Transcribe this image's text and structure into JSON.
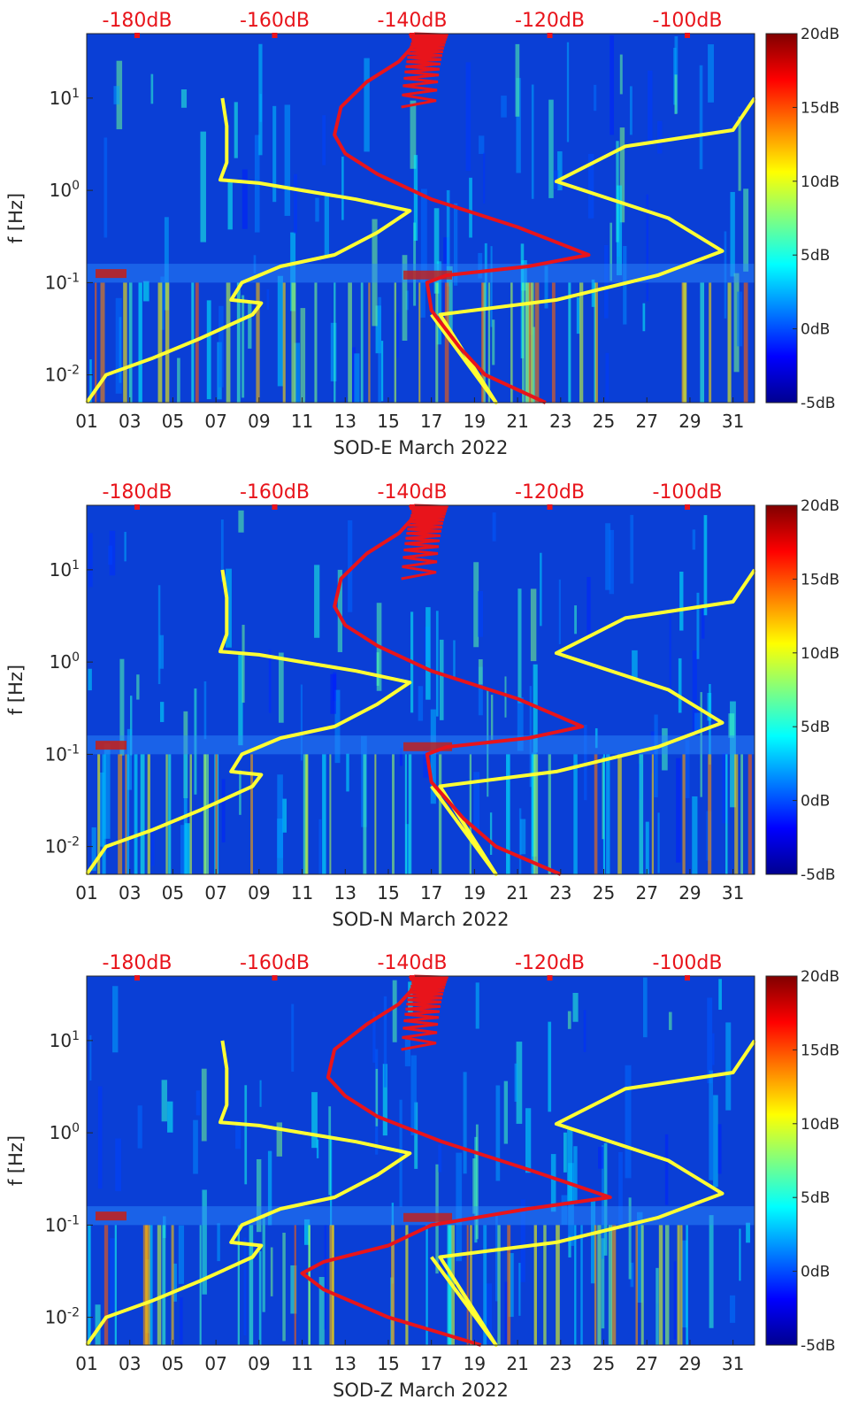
{
  "chart_data": [
    {
      "type": "heatmap",
      "title": "",
      "xlabel": "SOD-E March 2022",
      "ylabel": "f [Hz]",
      "y_scale": "log",
      "ylim": [
        0.005,
        50
      ],
      "xlim": [
        1,
        32
      ],
      "x_tick_labels": [
        "01",
        "03",
        "05",
        "07",
        "09",
        "11",
        "13",
        "15",
        "17",
        "19",
        "21",
        "23",
        "25",
        "27",
        "29",
        "31"
      ],
      "y_tick_labels": [
        "10-2",
        "10-1",
        "100",
        "101"
      ],
      "top_axis_labels": [
        "-180dB",
        "-160dB",
        "-140dB",
        "-120dB",
        "-100dB"
      ],
      "colorbar": {
        "range": [
          -5,
          20
        ],
        "ticks": [
          "20dB",
          "15dB",
          "10dB",
          "5dB",
          "0dB",
          "-5dB"
        ]
      },
      "grid": false,
      "series": [
        {
          "color": "#ffff33",
          "x": [
            1.0,
            1.9,
            4.0,
            6.3,
            8.7,
            9.1,
            7.7,
            8.2,
            10.0,
            12.5,
            14.5,
            16.0,
            13.5,
            11.0,
            9.0,
            7.2,
            7.5,
            7.5,
            7.3
          ],
          "y": [
            0.005,
            0.01,
            0.015,
            0.025,
            0.045,
            0.06,
            0.065,
            0.1,
            0.15,
            0.2,
            0.35,
            0.6,
            0.8,
            1.0,
            1.2,
            1.3,
            2.0,
            5.0,
            10.0
          ]
        },
        {
          "color": "#ffff33",
          "x": [
            17.0,
            20.0,
            17.4,
            22.8,
            27.5,
            30.5,
            28.0,
            22.8,
            26.0,
            31.0,
            32.0
          ],
          "y": [
            0.045,
            0.005,
            0.045,
            0.065,
            0.12,
            0.22,
            0.5,
            1.25,
            3.0,
            4.5,
            10.0
          ]
        },
        {
          "color": "#e8141b",
          "x": [
            22.3,
            19.5,
            18.3,
            17.0,
            16.8,
            17.7,
            21.5,
            24.3,
            21.0,
            17.0,
            14.5,
            13.0,
            12.5,
            12.8,
            14.0,
            15.5,
            16.3,
            16.0
          ],
          "y": [
            0.005,
            0.01,
            0.02,
            0.05,
            0.1,
            0.12,
            0.15,
            0.2,
            0.4,
            0.8,
            1.5,
            2.5,
            4.0,
            8.0,
            15.0,
            25.0,
            40.0,
            50.0
          ]
        }
      ]
    },
    {
      "type": "heatmap",
      "title": "",
      "xlabel": "SOD-N March 2022",
      "ylabel": "f [Hz]",
      "y_scale": "log",
      "ylim": [
        0.005,
        50
      ],
      "xlim": [
        1,
        32
      ],
      "x_tick_labels": [
        "01",
        "03",
        "05",
        "07",
        "09",
        "11",
        "13",
        "15",
        "17",
        "19",
        "21",
        "23",
        "25",
        "27",
        "29",
        "31"
      ],
      "y_tick_labels": [
        "10-2",
        "10-1",
        "100",
        "101"
      ],
      "top_axis_labels": [
        "-180dB",
        "-160dB",
        "-140dB",
        "-120dB",
        "-100dB"
      ],
      "colorbar": {
        "range": [
          -5,
          20
        ],
        "ticks": [
          "20dB",
          "15dB",
          "10dB",
          "5dB",
          "0dB",
          "-5dB"
        ]
      },
      "grid": false,
      "series": [
        {
          "color": "#ffff33",
          "x": [
            1.0,
            1.9,
            4.0,
            6.3,
            8.7,
            9.1,
            7.7,
            8.2,
            10.0,
            12.5,
            14.5,
            16.0,
            13.5,
            11.0,
            9.0,
            7.2,
            7.5,
            7.5,
            7.3
          ],
          "y": [
            0.005,
            0.01,
            0.015,
            0.025,
            0.045,
            0.06,
            0.065,
            0.1,
            0.15,
            0.2,
            0.35,
            0.6,
            0.8,
            1.0,
            1.2,
            1.3,
            2.0,
            5.0,
            10.0
          ]
        },
        {
          "color": "#ffff33",
          "x": [
            17.0,
            20.0,
            17.4,
            22.8,
            27.5,
            30.5,
            28.0,
            22.8,
            26.0,
            31.0,
            32.0
          ],
          "y": [
            0.045,
            0.005,
            0.045,
            0.065,
            0.12,
            0.22,
            0.5,
            1.25,
            3.0,
            4.5,
            10.0
          ]
        },
        {
          "color": "#e8141b",
          "x": [
            23.0,
            20.0,
            18.5,
            17.0,
            16.8,
            17.7,
            21.5,
            24.0,
            21.0,
            17.0,
            14.5,
            13.0,
            12.5,
            12.8,
            14.0,
            15.5,
            16.3,
            16.0
          ],
          "y": [
            0.005,
            0.01,
            0.02,
            0.05,
            0.1,
            0.12,
            0.15,
            0.2,
            0.4,
            0.8,
            1.5,
            2.5,
            4.0,
            8.0,
            15.0,
            25.0,
            40.0,
            50.0
          ]
        }
      ]
    },
    {
      "type": "heatmap",
      "title": "",
      "xlabel": "SOD-Z March 2022",
      "ylabel": "f [Hz]",
      "y_scale": "log",
      "ylim": [
        0.005,
        50
      ],
      "xlim": [
        1,
        32
      ],
      "x_tick_labels": [
        "01",
        "03",
        "05",
        "07",
        "09",
        "11",
        "13",
        "15",
        "17",
        "19",
        "21",
        "23",
        "25",
        "27",
        "29",
        "31"
      ],
      "y_tick_labels": [
        "10-2",
        "10-1",
        "100",
        "101"
      ],
      "top_axis_labels": [
        "-180dB",
        "-160dB",
        "-140dB",
        "-120dB",
        "-100dB"
      ],
      "colorbar": {
        "range": [
          -5,
          20
        ],
        "ticks": [
          "20dB",
          "15dB",
          "10dB",
          "5dB",
          "0dB",
          "-5dB"
        ]
      },
      "grid": false,
      "series": [
        {
          "color": "#ffff33",
          "x": [
            1.0,
            1.9,
            4.0,
            6.3,
            8.7,
            9.1,
            7.7,
            8.2,
            10.0,
            12.5,
            14.5,
            16.0,
            13.5,
            11.0,
            9.0,
            7.2,
            7.5,
            7.5,
            7.3
          ],
          "y": [
            0.005,
            0.01,
            0.015,
            0.025,
            0.045,
            0.06,
            0.065,
            0.1,
            0.15,
            0.2,
            0.35,
            0.6,
            0.8,
            1.0,
            1.2,
            1.3,
            2.0,
            5.0,
            10.0
          ]
        },
        {
          "color": "#ffff33",
          "x": [
            17.0,
            20.0,
            17.4,
            22.8,
            27.5,
            30.5,
            28.0,
            22.8,
            26.0,
            31.0,
            32.0
          ],
          "y": [
            0.045,
            0.005,
            0.045,
            0.065,
            0.12,
            0.22,
            0.5,
            1.25,
            3.0,
            4.5,
            10.0
          ]
        },
        {
          "color": "#e8141b",
          "x": [
            19.3,
            15.0,
            12.0,
            11.0,
            12.0,
            15.0,
            17.0,
            21.5,
            25.3,
            21.5,
            17.5,
            14.5,
            13.0,
            12.2,
            12.5,
            14.0,
            15.5,
            16.3,
            16.0
          ],
          "y": [
            0.005,
            0.01,
            0.02,
            0.03,
            0.04,
            0.06,
            0.1,
            0.15,
            0.2,
            0.4,
            0.8,
            1.5,
            2.5,
            4.0,
            8.0,
            15.0,
            25.0,
            40.0,
            50.0
          ]
        }
      ]
    }
  ]
}
